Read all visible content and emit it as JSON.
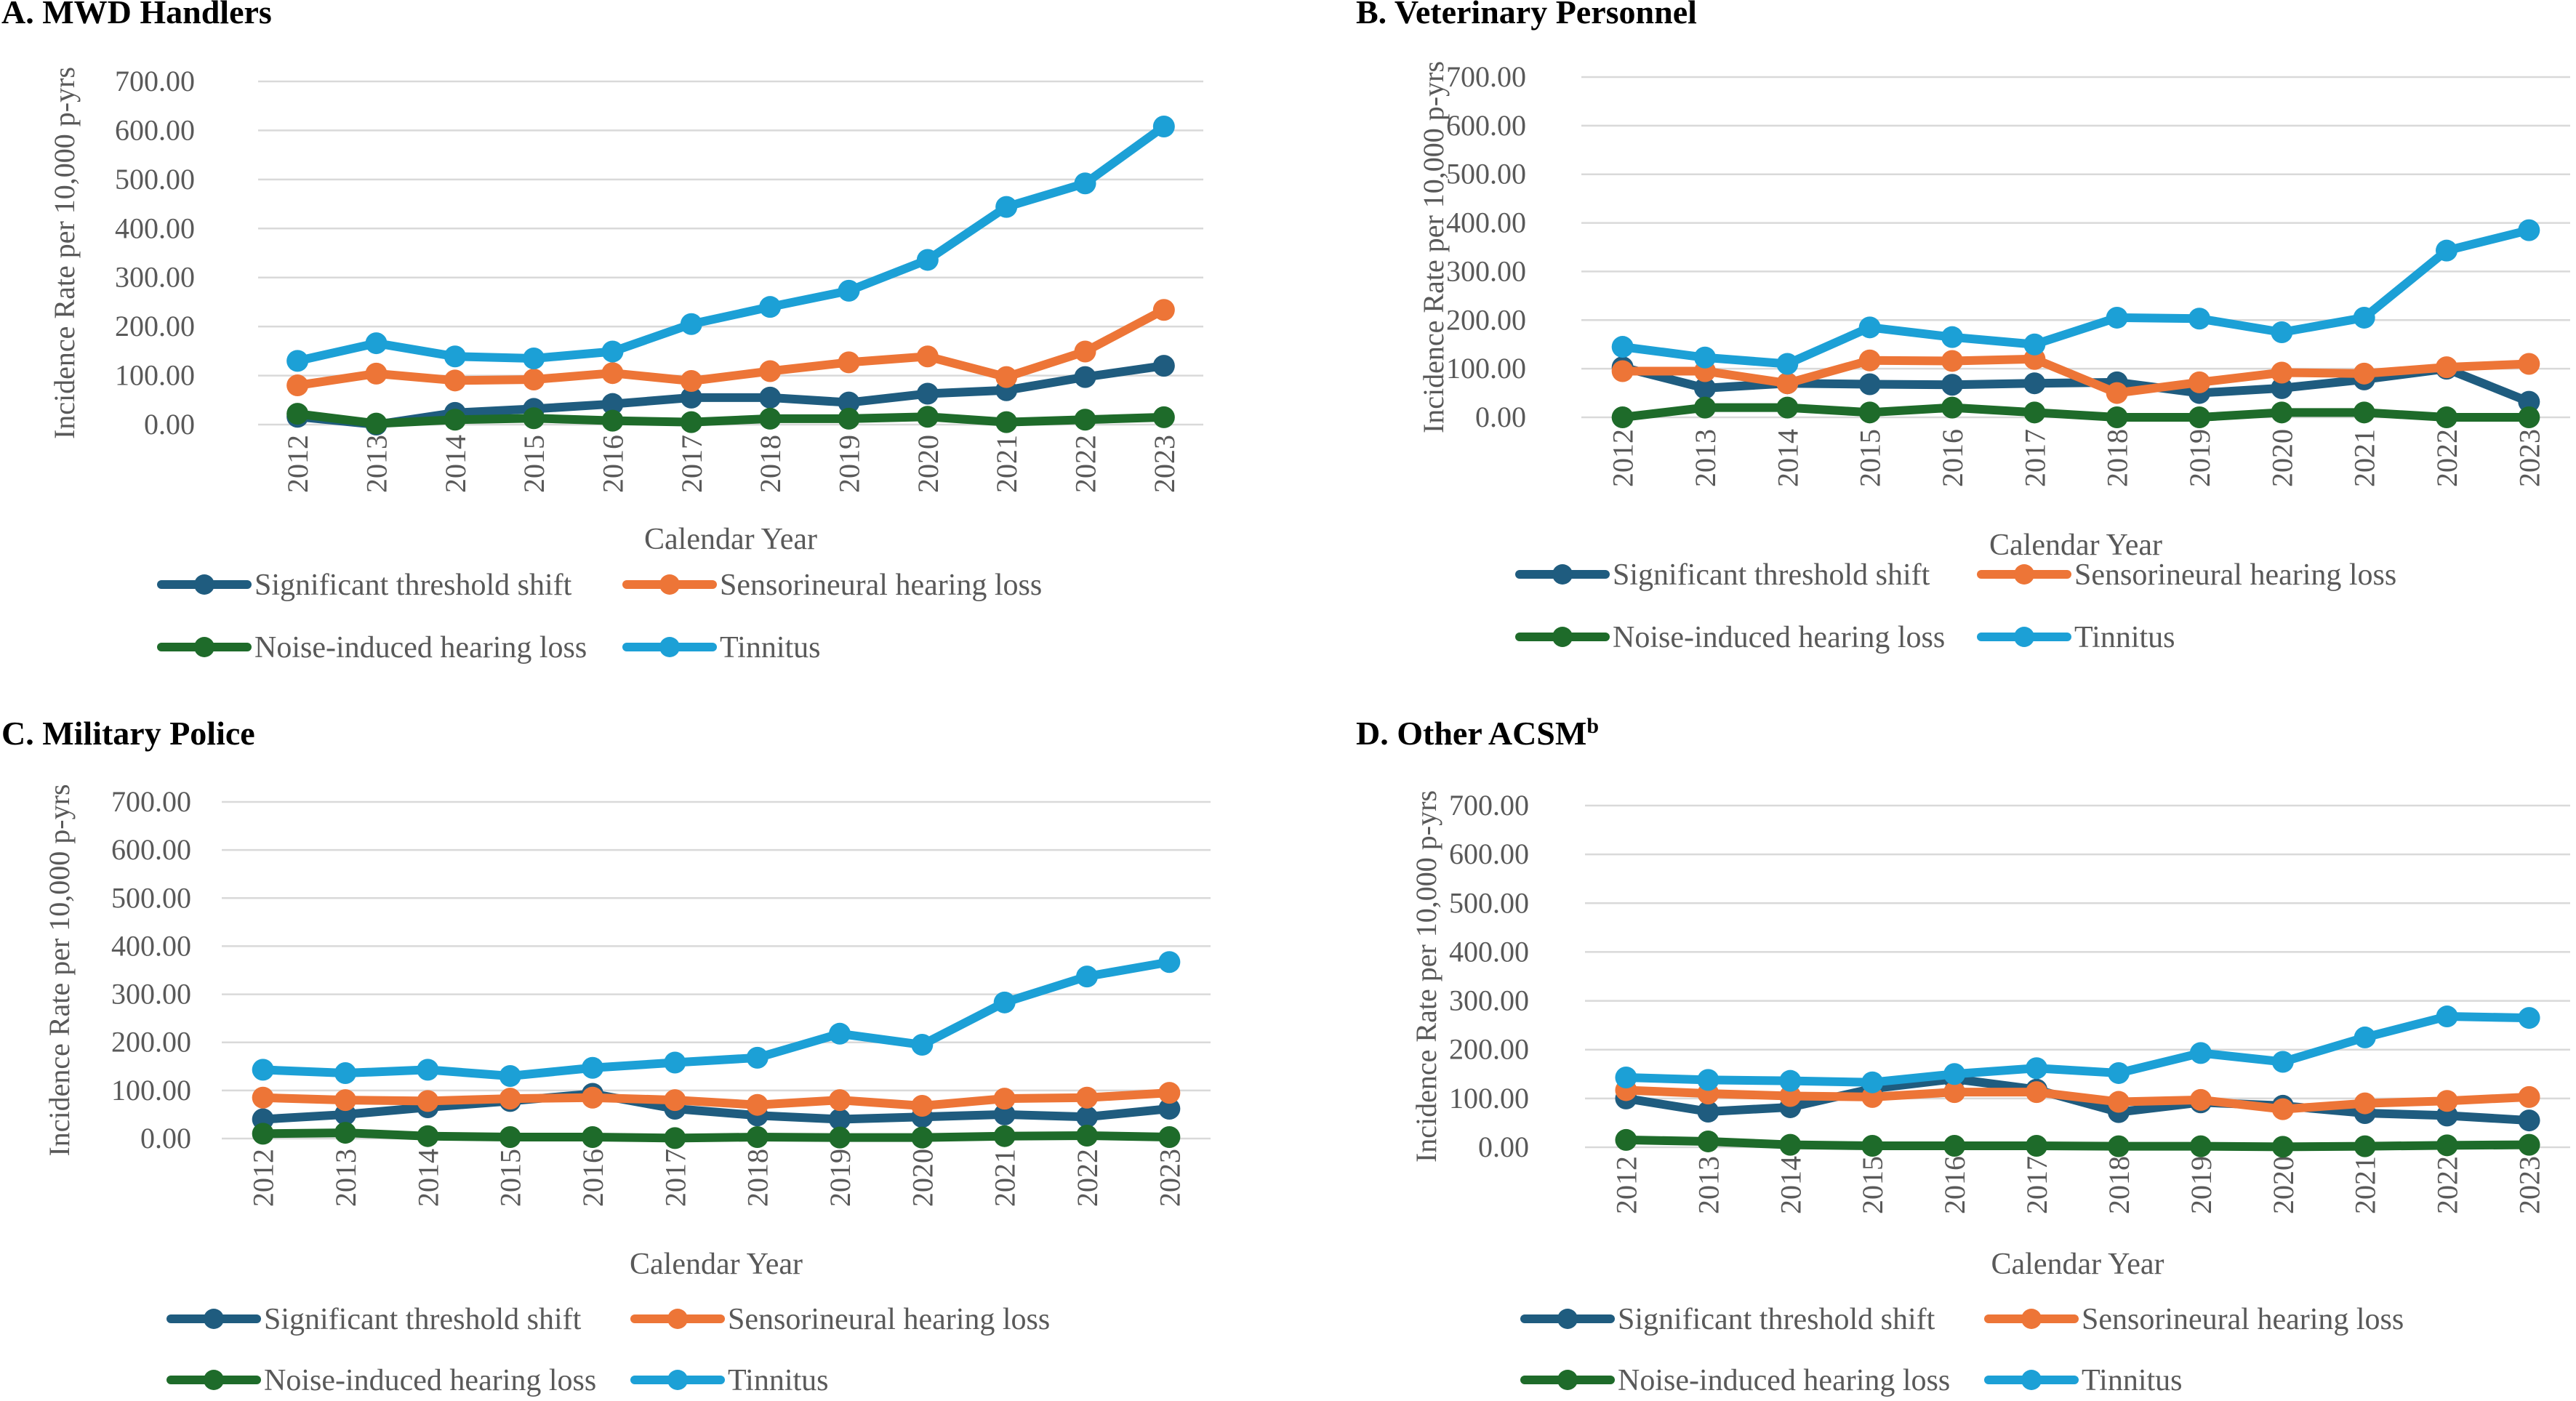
{
  "colors": {
    "significant_threshold_shift": "#1F5C7F",
    "sensorineural_hearing_loss": "#ED7537",
    "noise_induced_hearing_loss": "#1E6B2A",
    "tinnitus": "#1CA0D6",
    "gridline": "#D9D9D9",
    "axis_text": "#595959"
  },
  "chart_data": [
    {
      "type": "line",
      "title": "A. MWD Handlers",
      "xlabel": "Calendar Year",
      "ylabel": "Incidence Rate per 10,000 p-yrs",
      "ylim": [
        0,
        700
      ],
      "ytick_labels": [
        "0.00",
        "100.00",
        "200.00",
        "300.00",
        "400.00",
        "500.00",
        "600.00",
        "700.00"
      ],
      "grid": true,
      "legend_position": "bottom",
      "categories": [
        "2012",
        "2013",
        "2014",
        "2015",
        "2016",
        "2017",
        "2018",
        "2019",
        "2020",
        "2021",
        "2022",
        "2023"
      ],
      "series": [
        {
          "name": "Significant threshold shift",
          "values": [
            16,
            0,
            24,
            32,
            42,
            55,
            55,
            45,
            63,
            70,
            97,
            120
          ]
        },
        {
          "name": "Sensorineural hearing loss",
          "values": [
            80,
            104,
            90,
            92,
            105,
            89,
            109,
            127,
            139,
            97,
            149,
            234
          ]
        },
        {
          "name": "Noise-induced hearing loss",
          "values": [
            22,
            2,
            10,
            13,
            8,
            5,
            12,
            12,
            16,
            5,
            10,
            15
          ]
        },
        {
          "name": "Tinnitus",
          "values": [
            130,
            166,
            139,
            135,
            149,
            205,
            240,
            273,
            336,
            444,
            492,
            608
          ]
        }
      ]
    },
    {
      "type": "line",
      "title": "B. Veterinary Personnel",
      "xlabel": "Calendar Year",
      "ylabel": "Incidence Rate per 10,000 p-yrs",
      "ylim": [
        0,
        700
      ],
      "ytick_labels": [
        "0.00",
        "100.00",
        "200.00",
        "300.00",
        "400.00",
        "500.00",
        "600.00",
        "700.00"
      ],
      "grid": true,
      "legend_position": "bottom",
      "categories": [
        "2012",
        "2013",
        "2014",
        "2015",
        "2016",
        "2017",
        "2018",
        "2019",
        "2020",
        "2021",
        "2022",
        "2023"
      ],
      "series": [
        {
          "name": "Significant threshold shift",
          "values": [
            103,
            60,
            70,
            68,
            67,
            70,
            72,
            50,
            60,
            78,
            100,
            32
          ]
        },
        {
          "name": "Sensorineural hearing loss",
          "values": [
            95,
            95,
            70,
            117,
            116,
            120,
            50,
            72,
            92,
            90,
            103,
            110
          ]
        },
        {
          "name": "Noise-induced hearing loss",
          "values": [
            0,
            20,
            20,
            10,
            20,
            10,
            0,
            0,
            10,
            10,
            0,
            0
          ]
        },
        {
          "name": "Tinnitus",
          "values": [
            145,
            123,
            110,
            185,
            165,
            150,
            205,
            203,
            175,
            205,
            343,
            385
          ]
        }
      ]
    },
    {
      "type": "line",
      "title": "C. Military Police",
      "xlabel": "Calendar Year",
      "ylabel": "Incidence Rate per 10,000 p-yrs",
      "ylim": [
        0,
        700
      ],
      "ytick_labels": [
        "0.00",
        "100.00",
        "200.00",
        "300.00",
        "400.00",
        "500.00",
        "600.00",
        "700.00"
      ],
      "grid": true,
      "legend_position": "bottom",
      "categories": [
        "2012",
        "2013",
        "2014",
        "2015",
        "2016",
        "2017",
        "2018",
        "2019",
        "2020",
        "2021",
        "2022",
        "2023"
      ],
      "series": [
        {
          "name": "Significant threshold shift",
          "values": [
            40,
            50,
            65,
            78,
            93,
            62,
            48,
            40,
            45,
            50,
            45,
            62
          ]
        },
        {
          "name": "Sensorineural hearing loss",
          "values": [
            85,
            80,
            78,
            83,
            85,
            80,
            70,
            80,
            68,
            83,
            85,
            95
          ]
        },
        {
          "name": "Noise-induced hearing loss",
          "values": [
            10,
            12,
            5,
            3,
            3,
            1,
            3,
            2,
            2,
            5,
            6,
            3
          ]
        },
        {
          "name": "Tinnitus",
          "values": [
            143,
            136,
            143,
            130,
            147,
            158,
            168,
            218,
            195,
            283,
            337,
            367
          ]
        }
      ]
    },
    {
      "type": "line",
      "title": "D. Other ACSM",
      "title_superscript": "b",
      "xlabel": "Calendar Year",
      "ylabel": "Incidence Rate per 10,000 p-yrs",
      "ylim": [
        0,
        700
      ],
      "ytick_labels": [
        "0.00",
        "100.00",
        "200.00",
        "300.00",
        "400.00",
        "500.00",
        "600.00",
        "700.00"
      ],
      "grid": true,
      "legend_position": "bottom",
      "categories": [
        "2012",
        "2013",
        "2014",
        "2015",
        "2016",
        "2017",
        "2018",
        "2019",
        "2020",
        "2021",
        "2022",
        "2023"
      ],
      "series": [
        {
          "name": "Significant threshold shift",
          "values": [
            100,
            73,
            82,
            120,
            140,
            118,
            72,
            92,
            85,
            70,
            65,
            55
          ]
        },
        {
          "name": "Sensorineural hearing loss",
          "values": [
            117,
            110,
            105,
            103,
            113,
            113,
            93,
            97,
            78,
            90,
            95,
            103
          ]
        },
        {
          "name": "Noise-induced hearing loss",
          "values": [
            15,
            12,
            5,
            3,
            3,
            3,
            2,
            2,
            1,
            2,
            4,
            5
          ]
        },
        {
          "name": "Tinnitus",
          "values": [
            143,
            138,
            136,
            133,
            150,
            162,
            152,
            193,
            175,
            225,
            268,
            265
          ]
        }
      ]
    }
  ]
}
